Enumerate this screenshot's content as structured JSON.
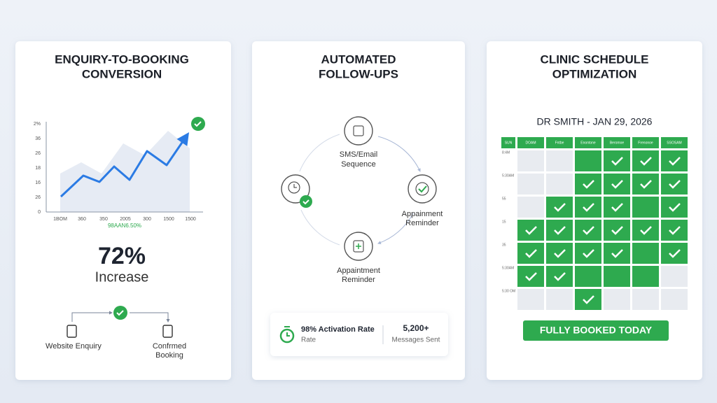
{
  "cards": [
    {
      "title": [
        "ENQUIRY-TO-BOOKING",
        "CONVERSION"
      ],
      "chart": {
        "y_labels": [
          "2%",
          "36",
          "26",
          "18",
          "16",
          "26",
          "0"
        ],
        "x_labels": [
          "1BOM",
          "360",
          "350",
          "2005",
          "300",
          "1500",
          "1500"
        ],
        "caption": "98AAN6.50%"
      },
      "stat": "72%",
      "stat_label": "Increase",
      "flow": {
        "from": [
          "Website Enquiry"
        ],
        "to": [
          "Confrmed",
          "Booking"
        ]
      }
    },
    {
      "title": [
        "AUTOMATED",
        "FOLLOW-UPS"
      ],
      "nodes": [
        [
          "SMS/Email",
          "Sequence"
        ],
        [
          "Appainment",
          "Reminder"
        ],
        [
          "Appaintment",
          "Reminder"
        ]
      ],
      "stats": [
        {
          "main": "98% Activation Rate",
          "sub": "Rate"
        },
        {
          "main": "5,200+",
          "sub": "Messages Sent"
        }
      ]
    },
    {
      "title": [
        "CLINIC SCHEDULE",
        "OPTIMIZATION"
      ],
      "subtitle": "DR SMITH - JAN 29, 2026",
      "columns": [
        "SUN",
        "DOAM",
        "Fntbe",
        "Enontone",
        "Beromoe",
        "Frenonoe",
        "SSOSAM"
      ],
      "rows": [
        "8:4M",
        "5:30AM",
        "55",
        "15",
        "35",
        "5:30AM",
        "5:30 OM"
      ],
      "button": "FULLY BOOKED TODAY"
    }
  ]
}
